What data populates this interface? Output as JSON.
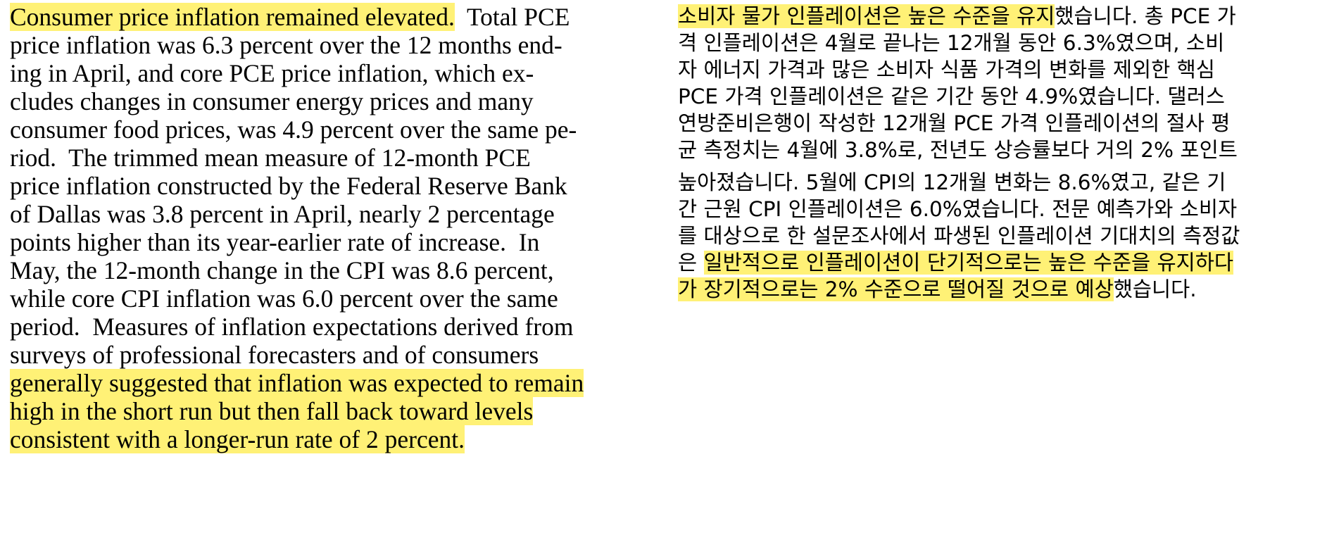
{
  "english": {
    "lines": [
      {
        "hl": "Consumer price inflation remained elevated.",
        "rest": "  Total PCE"
      },
      {
        "pre": "price inflation was 6.3 percent over the 12 months end-"
      },
      {
        "pre": "ing in April, and core PCE price inflation, which ex-"
      },
      {
        "pre": "cludes changes in consumer energy prices and many"
      },
      {
        "pre": "consumer food prices, was 4.9 percent over the same pe-"
      },
      {
        "pre": "riod.  The trimmed mean measure of 12-month PCE"
      },
      {
        "pre": "price inflation constructed by the Federal Reserve Bank"
      },
      {
        "pre": "of Dallas was 3.8 percent in April, nearly 2 percentage"
      },
      {
        "pre": "points higher than its year-earlier rate of increase.  In"
      },
      {
        "pre": "May, the 12-month change in the CPI was 8.6 percent,"
      },
      {
        "pre": "while core CPI inflation was 6.0 percent over the same"
      },
      {
        "pre": "period.  Measures of inflation expectations derived from"
      },
      {
        "pre": "surveys of professional forecasters and of consumers"
      },
      {
        "hl": "generally suggested that inflation was expected to remain"
      },
      {
        "hl": "high in the short run but then fall back toward levels"
      },
      {
        "hl": "consistent with a longer-run rate of 2 percent."
      }
    ]
  },
  "korean": {
    "lines": [
      {
        "hl": "소비자 물가 인플레이션은 높은 수준을 유지",
        "rest": "했습니다. 총 PCE 가"
      },
      {
        "pre": "격 인플레이션은 4월로 끝나는 12개월 동안 6.3%였으며, 소비"
      },
      {
        "pre": "자 에너지 가격과 많은 소비자 식품 가격의 변화를 제외한 핵심"
      },
      {
        "pre": "PCE 가격 인플레이션은 같은 기간 동안 4.9%였습니다. 댈러스"
      },
      {
        "pre": "연방준비은행이 작성한 12개월 PCE 가격 인플레이션의 절사 평"
      },
      {
        "pre": "균 측정치는 4월에 3.8%로, 전년도 상승률보다 거의 2% 포인트"
      },
      {
        "pre": "높아졌습니다. 5월에 CPI의 12개월 변화는 8.6%였고, 같은 기"
      },
      {
        "pre": "간 근원 CPI 인플레이션은 6.0%였습니다. 전문 예측가와 소비자"
      },
      {
        "pre": "를 대상으로 한 설문조사에서 파생된 인플레이션 기대치의 측정값"
      },
      {
        "pre": "은 ",
        "hl": "일반적으로 인플레이션이 단기적으로는 높은 수준을 유지하다"
      },
      {
        "hl": "가 장기적으로는 2% 수준으로 떨어질 것으로 예상",
        "rest": "했습니다."
      }
    ]
  }
}
